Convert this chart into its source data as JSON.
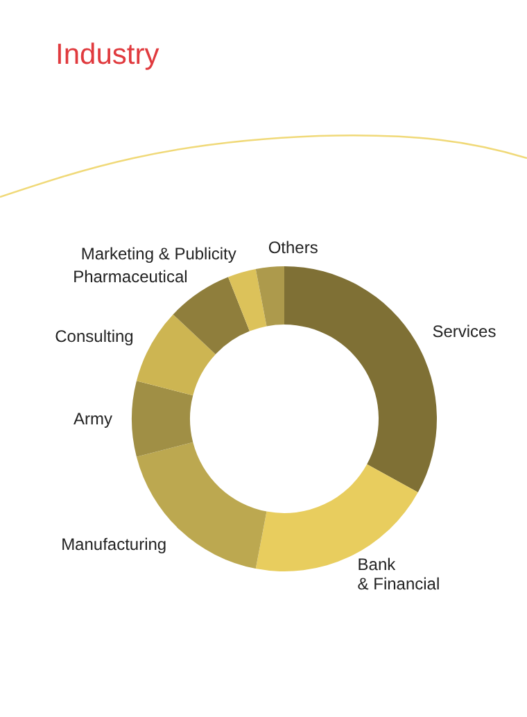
{
  "chart_data": {
    "type": "donut",
    "title": "Industry",
    "categories": [
      "Services",
      "Bank\n& Financial",
      "Manufacturing",
      "Army",
      "Consulting",
      "Pharmaceutical",
      "Marketing & Publicity",
      "Others"
    ],
    "values": [
      33,
      20,
      18,
      8,
      8,
      7,
      3,
      3
    ],
    "colors": [
      "#7f7035",
      "#e8cd5e",
      "#bca850",
      "#a08f45",
      "#cdb552",
      "#8f7e3c",
      "#dcc25a",
      "#ad9a4c"
    ],
    "legend": false
  }
}
